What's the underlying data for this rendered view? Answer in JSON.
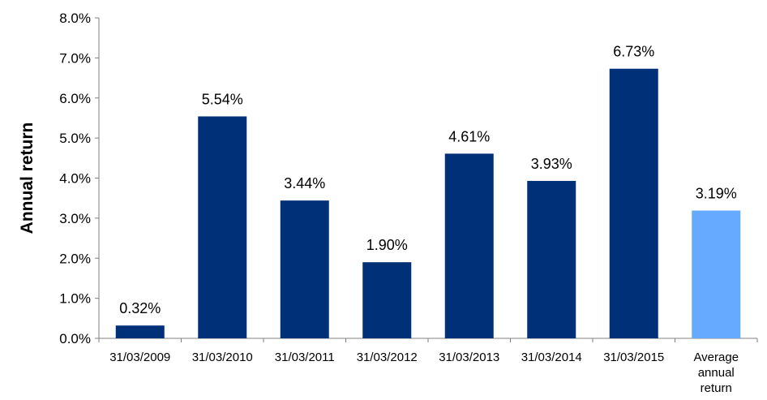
{
  "chart_data": {
    "type": "bar",
    "title": "",
    "xlabel": "",
    "ylabel": "Annual return",
    "ylim": [
      0,
      8
    ],
    "yticks": [
      "0.0%",
      "1.0%",
      "2.0%",
      "3.0%",
      "4.0%",
      "5.0%",
      "6.0%",
      "7.0%",
      "8.0%"
    ],
    "grid": false,
    "legend": "none",
    "categories": [
      [
        "31/03/2009"
      ],
      [
        "31/03/2010"
      ],
      [
        "31/03/2011"
      ],
      [
        "31/03/2012"
      ],
      [
        "31/03/2013"
      ],
      [
        "31/03/2014"
      ],
      [
        "31/03/2015"
      ],
      [
        "Average",
        "annual",
        "return"
      ]
    ],
    "values": [
      0.32,
      5.54,
      3.44,
      1.9,
      4.61,
      3.93,
      6.73,
      3.19
    ],
    "data_labels": [
      "0.32%",
      "5.54%",
      "3.44%",
      "1.90%",
      "4.61%",
      "3.93%",
      "6.73%",
      "3.19%"
    ],
    "colors": {
      "bar": "#003078",
      "average_bar": "#66aaff",
      "axis": "#808080",
      "text": "#000000"
    }
  }
}
